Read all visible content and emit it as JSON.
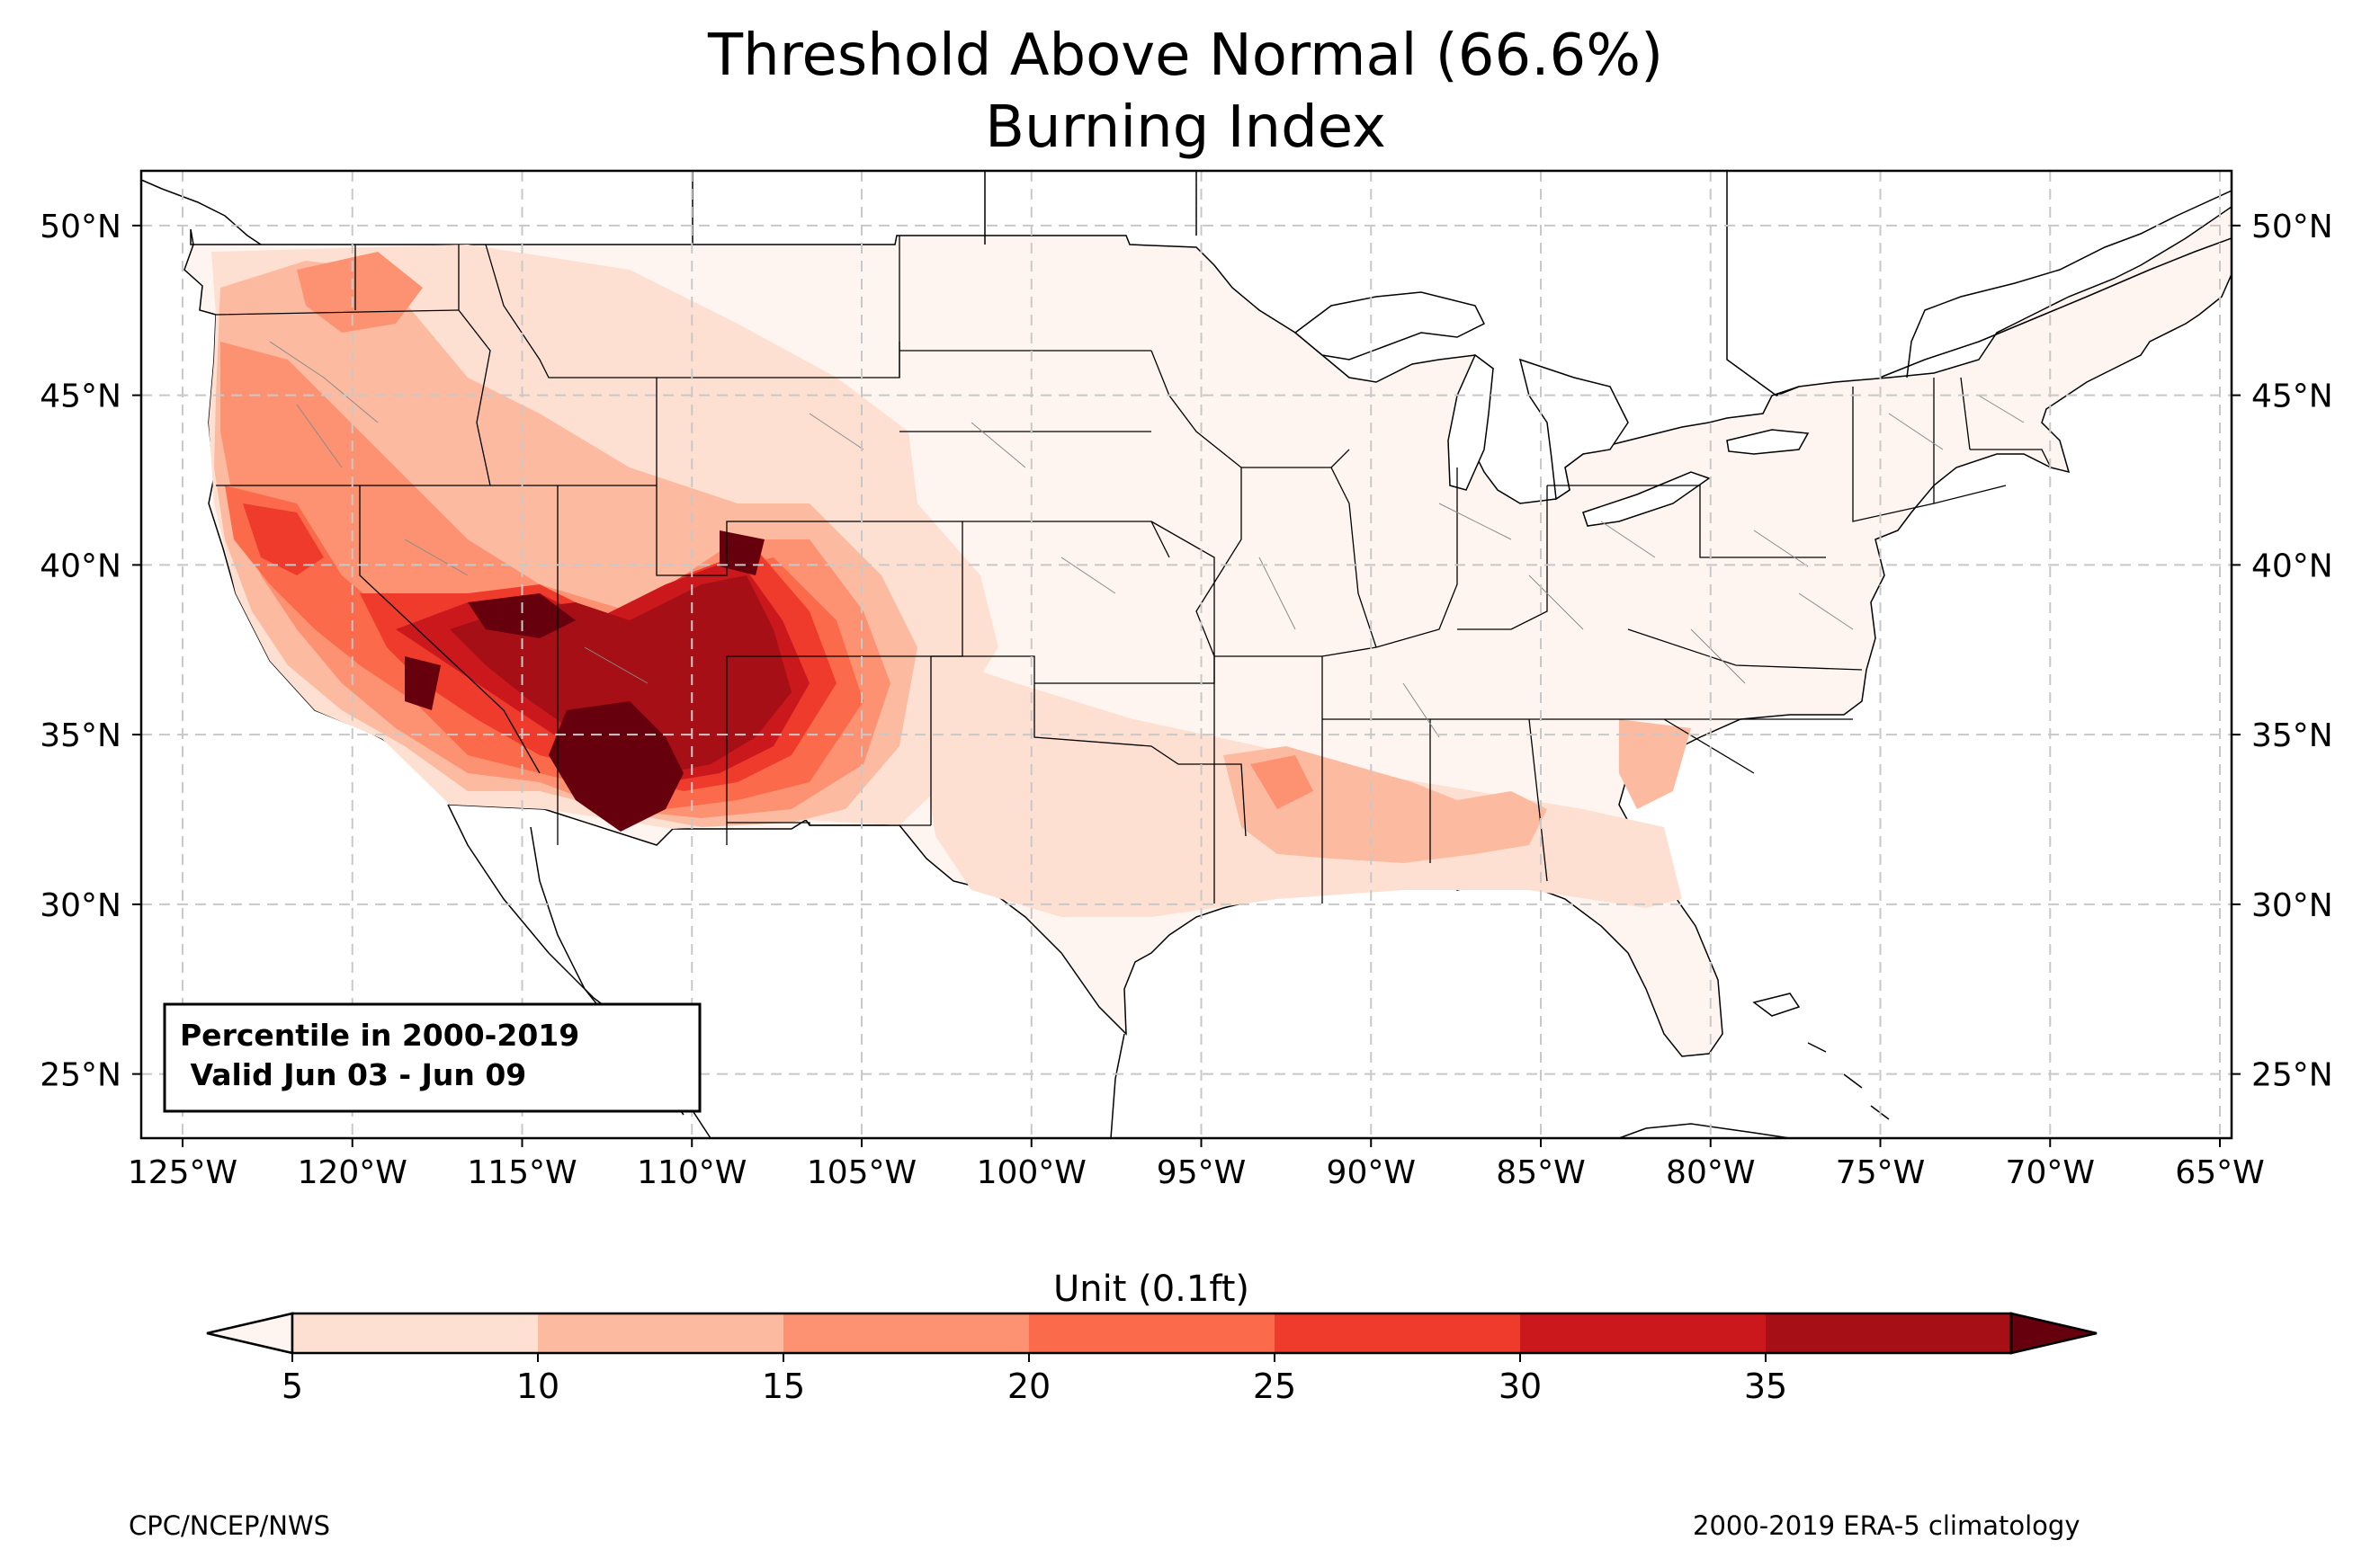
{
  "title": "Threshold Above Normal (66.6%)",
  "subtitle": "Burning Index",
  "map": {
    "lat_ticks": [
      {
        "value": 50,
        "label": "50°N"
      },
      {
        "value": 45,
        "label": "45°N"
      },
      {
        "value": 40,
        "label": "40°N"
      },
      {
        "value": 35,
        "label": "35°N"
      },
      {
        "value": 30,
        "label": "30°N"
      },
      {
        "value": 25,
        "label": "25°N"
      }
    ],
    "lon_ticks": [
      {
        "value": -125,
        "label": "125°W"
      },
      {
        "value": -120,
        "label": "120°W"
      },
      {
        "value": -115,
        "label": "115°W"
      },
      {
        "value": -110,
        "label": "110°W"
      },
      {
        "value": -105,
        "label": "105°W"
      },
      {
        "value": -100,
        "label": "100°W"
      },
      {
        "value": -95,
        "label": "95°W"
      },
      {
        "value": -90,
        "label": "90°W"
      },
      {
        "value": -85,
        "label": "85°W"
      },
      {
        "value": -80,
        "label": "80°W"
      },
      {
        "value": -75,
        "label": "75°W"
      },
      {
        "value": -70,
        "label": "70°W"
      },
      {
        "value": -65,
        "label": "65°W"
      }
    ],
    "gridlines": true,
    "info_box": {
      "line1": "Percentile in 2000-2019",
      "line2": " Valid Jun 03 - Jun 09"
    }
  },
  "colorbar": {
    "label": "Unit (0.1ft)",
    "ticks": [
      "5",
      "10",
      "15",
      "20",
      "25",
      "30",
      "35"
    ],
    "colors": [
      "#fee0d2",
      "#fcbba1",
      "#fc9272",
      "#fb6a4a",
      "#ef3b2c",
      "#cb181d",
      "#a50f15"
    ],
    "under_color": "#fff5f0",
    "over_color": "#67000d",
    "extend": "both"
  },
  "footer": {
    "left": "CPC/NCEP/NWS",
    "right": "2000-2019 ERA-5 climatology"
  }
}
